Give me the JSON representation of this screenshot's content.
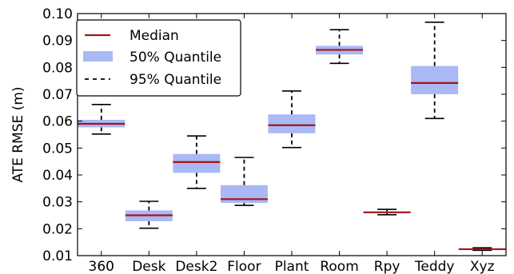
{
  "chart_data": {
    "type": "box",
    "ylabel": "ATE RMSE (m)",
    "ylim": [
      0.01,
      0.1
    ],
    "yticks": [
      0.01,
      0.02,
      0.03,
      0.04,
      0.05,
      0.06,
      0.07,
      0.08,
      0.09,
      0.1
    ],
    "ytick_labels": [
      "0.01",
      "0.02",
      "0.03",
      "0.04",
      "0.05",
      "0.06",
      "0.07",
      "0.08",
      "0.09",
      "0.10"
    ],
    "categories": [
      "360",
      "Desk",
      "Desk2",
      "Floor",
      "Plant",
      "Room",
      "Rpy",
      "Teddy",
      "Xyz"
    ],
    "boxes": [
      {
        "category": "360",
        "q05": 0.0552,
        "q25": 0.0577,
        "median": 0.059,
        "q75": 0.0605,
        "q95": 0.0662
      },
      {
        "category": "Desk",
        "q05": 0.0202,
        "q25": 0.0228,
        "median": 0.025,
        "q75": 0.0268,
        "q95": 0.0302
      },
      {
        "category": "Desk2",
        "q05": 0.035,
        "q25": 0.0408,
        "median": 0.0448,
        "q75": 0.0478,
        "q95": 0.0545
      },
      {
        "category": "Floor",
        "q05": 0.0287,
        "q25": 0.0296,
        "median": 0.031,
        "q75": 0.0362,
        "q95": 0.0465
      },
      {
        "category": "Plant",
        "q05": 0.0502,
        "q25": 0.0555,
        "median": 0.0585,
        "q75": 0.0625,
        "q95": 0.0712
      },
      {
        "category": "Room",
        "q05": 0.0815,
        "q25": 0.0848,
        "median": 0.0865,
        "q75": 0.088,
        "q95": 0.094
      },
      {
        "category": "Rpy",
        "q05": 0.0252,
        "q25": 0.0258,
        "median": 0.0261,
        "q75": 0.0264,
        "q95": 0.0272
      },
      {
        "category": "Teddy",
        "q05": 0.061,
        "q25": 0.07,
        "median": 0.0742,
        "q75": 0.0805,
        "q95": 0.0968
      },
      {
        "category": "Xyz",
        "q05": 0.012,
        "q25": 0.0122,
        "median": 0.0124,
        "q75": 0.0127,
        "q95": 0.0129
      }
    ],
    "legend": {
      "placement": "top-left",
      "entries": [
        {
          "key": "median",
          "label": "Median"
        },
        {
          "key": "q50",
          "label": "50% Quantile"
        },
        {
          "key": "q95",
          "label": "95% Quantile"
        }
      ]
    },
    "colors": {
      "median": "#a31515",
      "box_fill": "#aab8f5",
      "whisker": "#000000"
    },
    "grid": false
  }
}
